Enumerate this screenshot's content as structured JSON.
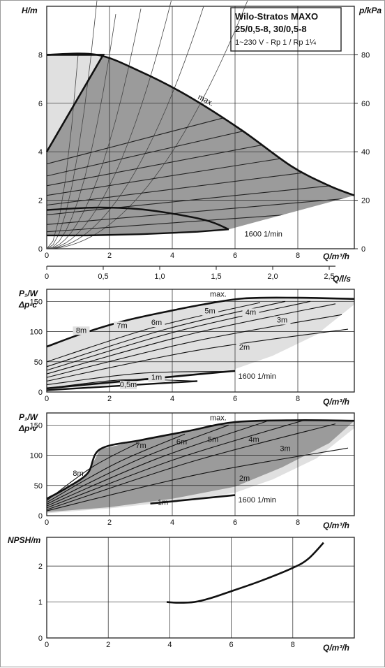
{
  "title_box": {
    "line1": "Wilo-Stratos MAXO",
    "line2": "25/0,5-8, 30/0,5-8",
    "line3": "1~230 V - Rp 1 / Rp 1¼"
  },
  "colors": {
    "dark_fill": "#9b9b9b",
    "light_fill": "#e0e0e0",
    "curve": "#111111",
    "grid": "#222222"
  },
  "chart_data": [
    {
      "type": "area",
      "name": "head-curve",
      "ylabel": "H/m",
      "ylabel_right": "p/kPa",
      "xlabel": "Q/m³/h",
      "xlim": [
        0,
        9.8
      ],
      "ylim": [
        0,
        10
      ],
      "xticks": [
        0,
        2,
        4,
        6,
        8
      ],
      "yticks": [
        0,
        2,
        4,
        6,
        8
      ],
      "yticks_right": [
        0,
        20,
        40,
        60,
        80
      ],
      "secondary_x": {
        "label": "Q/l/s",
        "ticks": [
          "0",
          "0,5",
          "1,0",
          "1,5",
          "2,0",
          "2,5"
        ],
        "values": [
          0,
          0.5,
          1.0,
          1.5,
          2.0,
          2.5
        ]
      },
      "max_curve": {
        "label": "max.",
        "x": [
          0,
          1.6,
          3,
          4.5,
          6.2,
          7.8,
          9.0,
          9.8
        ],
        "y": [
          8,
          8,
          7.3,
          6.3,
          4.9,
          3.4,
          2.6,
          2.2
        ]
      },
      "min_curve": {
        "label": "1600 1/min",
        "x": [
          0,
          1.3,
          3,
          4.8,
          5.8
        ],
        "y": [
          0.55,
          0.55,
          0.6,
          0.7,
          0.8
        ]
      },
      "light_region_left": {
        "x": [
          0,
          1.8,
          0
        ],
        "y": [
          8,
          8,
          4
        ]
      },
      "control_curves": [
        {
          "x": [
            0,
            9.8
          ],
          "y": [
            3.5,
            6.8
          ]
        },
        {
          "x": [
            0,
            9.8
          ],
          "y": [
            3.0,
            5.9
          ]
        },
        {
          "x": [
            0,
            9.8
          ],
          "y": [
            2.6,
            5.0
          ]
        },
        {
          "x": [
            0,
            9.8
          ],
          "y": [
            2.2,
            4.2
          ]
        },
        {
          "x": [
            0,
            9.8
          ],
          "y": [
            1.8,
            3.4
          ]
        },
        {
          "x": [
            0,
            9.8
          ],
          "y": [
            1.4,
            2.7
          ]
        },
        {
          "x": [
            0,
            9.8
          ],
          "y": [
            1.0,
            2.1
          ]
        },
        {
          "x": [
            0,
            9.8
          ],
          "y": [
            0.7,
            1.6
          ]
        }
      ],
      "dp_v_bold": {
        "x": [
          0,
          1.7,
          3.2,
          5.0,
          5.8
        ],
        "y": [
          1.6,
          1.7,
          1.6,
          1.2,
          0.8
        ]
      }
    },
    {
      "type": "area",
      "name": "power-dp-c",
      "ylabel": "P₁/W",
      "ylabel2": "Δp-c",
      "xlabel": "Q/m³/h",
      "xlim": [
        0,
        9.8
      ],
      "ylim": [
        0,
        170
      ],
      "xticks": [
        0,
        2,
        4,
        6,
        8
      ],
      "yticks": [
        0,
        50,
        100,
        150
      ],
      "max_label": "max.",
      "min_label": "1600 1/min",
      "max_curve": {
        "x": [
          0,
          1.2,
          2.5,
          4.0,
          5.0,
          6.3,
          8.0,
          9.8
        ],
        "y": [
          75,
          98,
          118,
          135,
          145,
          155,
          156,
          154
        ]
      },
      "light_region": {
        "x": [
          0,
          5.0,
          6.3,
          9.8,
          8.5,
          6.0,
          4.5,
          0
        ],
        "y": [
          5,
          145,
          155,
          154,
          80,
          30,
          20,
          2
        ]
      },
      "head_curves": [
        {
          "label": "8m",
          "label_x": 1.1,
          "label_y": 98
        },
        {
          "label": "7m",
          "label_x": 2.4,
          "label_y": 106
        },
        {
          "label": "6m",
          "label_x": 3.5,
          "label_y": 111
        },
        {
          "label": "5m",
          "label_x": 5.2,
          "label_y": 130
        },
        {
          "label": "4m",
          "label_x": 6.5,
          "label_y": 128
        },
        {
          "label": "3m",
          "label_x": 7.5,
          "label_y": 115
        },
        {
          "label": "2m",
          "label_x": 6.3,
          "label_y": 70
        },
        {
          "label": "1m",
          "label_x": 3.5,
          "label_y": 20
        },
        {
          "label": "0,5m",
          "label_x": 2.6,
          "label_y": 8
        }
      ],
      "dashes": [
        {
          "x": [
            0.0,
            6.8
          ],
          "y": [
            50,
            148
          ]
        },
        {
          "x": [
            0.0,
            7.6
          ],
          "y": [
            42,
            150
          ]
        },
        {
          "x": [
            0.0,
            8.4
          ],
          "y": [
            36,
            150
          ]
        },
        {
          "x": [
            0.0,
            9.2
          ],
          "y": [
            30,
            146
          ]
        },
        {
          "x": [
            0.0,
            9.4
          ],
          "y": [
            24,
            128
          ]
        },
        {
          "x": [
            0.0,
            9.6
          ],
          "y": [
            18,
            104
          ]
        },
        {
          "x": [
            0.0,
            6.0
          ],
          "y": [
            12,
            34
          ]
        },
        {
          "x": [
            0.0,
            4.8
          ],
          "y": [
            6,
            18
          ]
        }
      ],
      "bold_min": {
        "x": [
          0,
          6.0
        ],
        "y": [
          6,
          35
        ]
      },
      "bold_min2": {
        "x": [
          0,
          4.8
        ],
        "y": [
          3,
          18
        ]
      }
    },
    {
      "type": "area",
      "name": "power-dp-v",
      "ylabel": "P₁/W",
      "ylabel2": "Δp-v",
      "xlabel": "Q/m³/h",
      "xlim": [
        0,
        9.8
      ],
      "ylim": [
        0,
        170
      ],
      "xticks": [
        0,
        2,
        4,
        6,
        8
      ],
      "yticks": [
        0,
        50,
        100,
        150
      ],
      "max_label": "max.",
      "min_label": "1600 1/min",
      "max_curve": {
        "x": [
          0,
          0.6,
          1.3,
          1.7,
          3.0,
          4.5,
          6.0,
          8.0,
          9.8
        ],
        "y": [
          28,
          45,
          70,
          110,
          125,
          140,
          155,
          158,
          157
        ]
      },
      "head_labels": [
        "8m",
        "7m",
        "6m",
        "5m",
        "4m",
        "3m",
        "2m",
        "1m"
      ],
      "head_label_pos": [
        [
          1.0,
          66
        ],
        [
          3.0,
          112
        ],
        [
          4.3,
          118
        ],
        [
          5.3,
          122
        ],
        [
          6.6,
          122
        ],
        [
          7.6,
          107
        ],
        [
          6.3,
          58
        ],
        [
          3.7,
          18
        ]
      ],
      "dashes": [
        {
          "x": [
            0,
            2.9
          ],
          "y": [
            25,
            120
          ]
        },
        {
          "x": [
            0,
            4.4
          ],
          "y": [
            22,
            135
          ]
        },
        {
          "x": [
            0,
            5.8
          ],
          "y": [
            19,
            150
          ]
        },
        {
          "x": [
            0,
            7.0
          ],
          "y": [
            16,
            156
          ]
        },
        {
          "x": [
            0,
            8.2
          ],
          "y": [
            13,
            158
          ]
        },
        {
          "x": [
            0,
            9.2
          ],
          "y": [
            10,
            152
          ]
        },
        {
          "x": [
            0,
            9.6
          ],
          "y": [
            8,
            112
          ]
        }
      ],
      "bold_min": {
        "x": [
          3.3,
          6.0
        ],
        "y": [
          20,
          34
        ]
      }
    },
    {
      "type": "line",
      "name": "npsh",
      "ylabel": "NPSH/m",
      "xlabel": "Q/m³/h",
      "xlim": [
        0,
        10
      ],
      "ylim": [
        0,
        2.8
      ],
      "xticks": [
        0,
        2,
        4,
        6,
        8
      ],
      "yticks": [
        0,
        1,
        2
      ],
      "x": [
        3.9,
        4.3,
        4.8,
        5.3,
        6.0,
        7.0,
        8.0,
        8.5,
        9.0
      ],
      "y": [
        1.0,
        0.98,
        1.0,
        1.1,
        1.3,
        1.6,
        1.95,
        2.2,
        2.65
      ]
    }
  ]
}
